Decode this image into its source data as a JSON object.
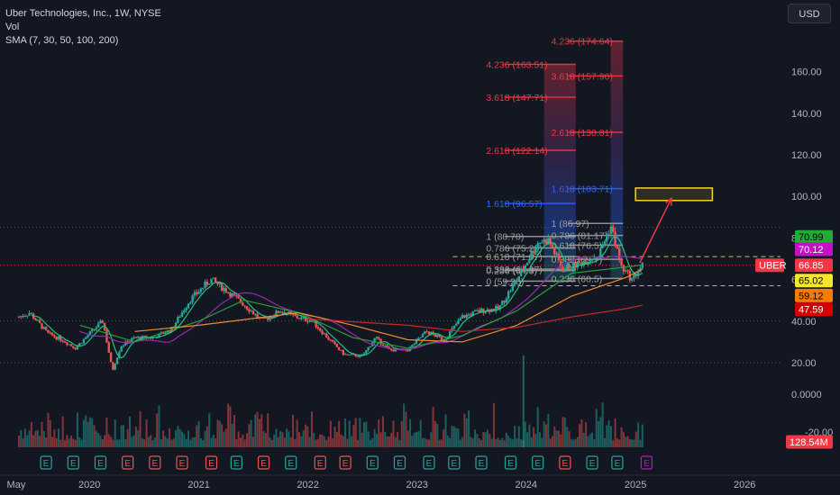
{
  "header": {
    "symbol_line": "Uber Technologies, Inc., 1W, NYSE",
    "volume_label": "Vol",
    "sma_label": "SMA (7, 30, 50, 100, 200)",
    "currency": "USD"
  },
  "colors": {
    "background": "#131722",
    "candle_up": "#26a69a",
    "candle_down": "#ef5350",
    "sma7": "#26c281",
    "sma30": "#9c27b0",
    "sma50": "#2e9d3a",
    "sma100": "#ef8b2c",
    "sma200": "#c62828",
    "fib_red": "#f23645",
    "fib_purple": "#9c27b0",
    "fib_blue": "#2962ff",
    "target_box": "#f5d327",
    "arrow": "#f23645"
  },
  "chart_data": {
    "type": "candlestick",
    "symbol": "UBER",
    "price_axis": {
      "min": 0,
      "max": 180,
      "ticks": [
        "160.00",
        "140.00",
        "120.00",
        "100.00",
        "80.00",
        "60.00",
        "40.00",
        "20.00"
      ]
    },
    "volume_axis_ticks": [
      "0.0000",
      "-20.00"
    ],
    "time_axis": [
      "May",
      "2020",
      "2021",
      "2022",
      "2023",
      "2024",
      "2025",
      "2026"
    ],
    "price_path": [
      [
        "2019-05-10",
        42
      ],
      [
        "2019-06-15",
        44
      ],
      [
        "2019-08-15",
        34
      ],
      [
        "2019-10-01",
        31
      ],
      [
        "2019-11-15",
        27
      ],
      [
        "2020-01-15",
        36
      ],
      [
        "2020-02-15",
        40
      ],
      [
        "2020-03-18",
        16
      ],
      [
        "2020-04-15",
        28
      ],
      [
        "2020-06-01",
        32
      ],
      [
        "2020-08-01",
        32
      ],
      [
        "2020-10-01",
        36
      ],
      [
        "2020-12-01",
        50
      ],
      [
        "2021-02-10",
        60
      ],
      [
        "2021-04-01",
        55
      ],
      [
        "2021-06-01",
        48
      ],
      [
        "2021-08-01",
        40
      ],
      [
        "2021-10-01",
        45
      ],
      [
        "2021-11-20",
        42
      ],
      [
        "2022-01-15",
        40
      ],
      [
        "2022-03-01",
        33
      ],
      [
        "2022-05-01",
        24
      ],
      [
        "2022-07-01",
        23
      ],
      [
        "2022-08-15",
        32
      ],
      [
        "2022-10-01",
        26
      ],
      [
        "2022-12-01",
        26
      ],
      [
        "2023-02-01",
        35
      ],
      [
        "2023-04-01",
        31
      ],
      [
        "2023-06-01",
        42
      ],
      [
        "2023-08-01",
        45
      ],
      [
        "2023-10-01",
        46
      ],
      [
        "2023-12-01",
        60
      ],
      [
        "2024-02-10",
        78
      ],
      [
        "2024-03-15",
        79
      ],
      [
        "2024-05-01",
        65
      ],
      [
        "2024-07-01",
        68
      ],
      [
        "2024-09-01",
        72
      ],
      [
        "2024-10-10",
        86
      ],
      [
        "2024-11-15",
        66
      ],
      [
        "2024-12-20",
        60
      ],
      [
        "2025-01-24",
        66.85
      ]
    ],
    "sma_lines": [
      {
        "name": "SMA 50",
        "points": [
          [
            "2019-12-01",
            38
          ],
          [
            "2020-06-01",
            30
          ],
          [
            "2021-01-01",
            40
          ],
          [
            "2021-06-01",
            50
          ],
          [
            "2021-12-01",
            44
          ],
          [
            "2022-06-01",
            32
          ],
          [
            "2022-12-01",
            27
          ],
          [
            "2023-06-01",
            33
          ],
          [
            "2023-12-01",
            45
          ],
          [
            "2024-06-01",
            63
          ],
          [
            "2024-12-01",
            66
          ],
          [
            "2025-01-24",
            67
          ]
        ]
      },
      {
        "name": "SMA 100",
        "points": [
          [
            "2020-06-01",
            35
          ],
          [
            "2021-01-01",
            38
          ],
          [
            "2021-12-01",
            44
          ],
          [
            "2022-06-01",
            38
          ],
          [
            "2022-12-01",
            31
          ],
          [
            "2023-06-01",
            30
          ],
          [
            "2023-12-01",
            38
          ],
          [
            "2024-06-01",
            52
          ],
          [
            "2024-12-01",
            61
          ],
          [
            "2025-01-24",
            65
          ]
        ]
      },
      {
        "name": "SMA 200",
        "points": [
          [
            "2022-01-01",
            41
          ],
          [
            "2022-12-01",
            38
          ],
          [
            "2023-06-01",
            35
          ],
          [
            "2023-12-01",
            37
          ],
          [
            "2024-06-01",
            42
          ],
          [
            "2024-12-01",
            46
          ],
          [
            "2025-01-24",
            47.59
          ]
        ]
      }
    ],
    "horizontal_lines": [
      {
        "value": 85,
        "style": "dotted",
        "color": "#50535e"
      },
      {
        "value": 40,
        "style": "dotted",
        "color": "#50535e"
      },
      {
        "value": 20,
        "style": "dotted",
        "color": "#50535e"
      },
      {
        "value": 66.85,
        "style": "dotted",
        "color": "#f23645"
      },
      {
        "value": 71,
        "style": "dashed",
        "color": "#c0ca33",
        "from": "2023-05-01"
      },
      {
        "value": 57,
        "style": "dashed",
        "color": "#c0ca33",
        "from": "2023-05-01"
      }
    ],
    "fib_left": {
      "x_start": "2023-10-20",
      "x_split": "2024-03-01",
      "x_end": "2024-06-15",
      "label_x": "2023-08-20",
      "levels": [
        {
          "ratio": "0",
          "value": 59.2,
          "label": "0 (59.20)"
        },
        {
          "ratio": "0.236",
          "value": 64.3,
          "label": "0.236 (64.3)"
        },
        {
          "ratio": "0.382",
          "value": 64.97,
          "label": "0.382 (64.97)"
        },
        {
          "ratio": "0.618",
          "value": 71.07,
          "label": "0.618 (71.07)"
        },
        {
          "ratio": "0.786",
          "value": 75.2,
          "label": "0.786 (75.20)"
        },
        {
          "ratio": "1",
          "value": 80.7,
          "label": "1 (80.70)"
        },
        {
          "ratio": "1.618",
          "value": 96.57,
          "label": "1.618 (96.57)"
        },
        {
          "ratio": "2.618",
          "value": 122.14,
          "label": "2.618 (122.14)"
        },
        {
          "ratio": "3.618",
          "value": 147.71,
          "label": "3.618 (147.71)"
        },
        {
          "ratio": "4.236",
          "value": 163.51,
          "label": "4.236 (163.51)"
        }
      ]
    },
    "fib_right": {
      "x_start": "2024-05-20",
      "x_split": "2024-10-10",
      "x_end": "2024-11-20",
      "label_x": "2024-03-25",
      "levels": [
        {
          "ratio": "0.236",
          "value": 60.5,
          "label": "0.236 (60.5)"
        },
        {
          "ratio": "0.382",
          "value": 69.7,
          "label": "0.382 (69.7)"
        },
        {
          "ratio": "0.618",
          "value": 76.5,
          "label": "0.618 (76.5)"
        },
        {
          "ratio": "0.786",
          "value": 81.17,
          "label": "0.786 (81.17)"
        },
        {
          "ratio": "1",
          "value": 86.97,
          "label": "1 (86.97)"
        },
        {
          "ratio": "1.618",
          "value": 103.71,
          "label": "1.618 (103.71)"
        },
        {
          "ratio": "2.618",
          "value": 130.81,
          "label": "2.618 (130.81)"
        },
        {
          "ratio": "3.618",
          "value": 157.9,
          "label": "3.618 (157.90)"
        },
        {
          "ratio": "4.236",
          "value": 174.64,
          "label": "4.236 (174.64)"
        }
      ]
    },
    "target_zone": {
      "x_start": "2025-01-01",
      "x_end": "2025-09-15",
      "low": 98,
      "high": 104
    },
    "arrow": {
      "from": [
        "2025-01-15",
        68
      ],
      "to": [
        "2025-05-01",
        99
      ]
    },
    "price_labels": [
      {
        "value": "70.99",
        "price": 80.5,
        "bg": "#22ab35",
        "fg": "#000000"
      },
      {
        "value": "70.12",
        "price": 74.5,
        "bg": "#c511c5",
        "fg": "#ffffff"
      },
      {
        "value": "66.85",
        "price": 66.85,
        "bg": "#f23645",
        "fg": "#ffffff"
      },
      {
        "value": "65.02",
        "price": 59.5,
        "bg": "#f5e627",
        "fg": "#000000"
      },
      {
        "value": "59.12",
        "price": 52.3,
        "bg": "#f57c00",
        "fg": "#000000"
      },
      {
        "value": "47.59",
        "price": 45.7,
        "bg": "#d50000",
        "fg": "#ffffff"
      },
      {
        "value": "128.54M",
        "price": -31.5,
        "bg": "#f23645",
        "fg": "#ffffff"
      }
    ],
    "symbol_tag": "UBER",
    "earnings_marker": "E",
    "earnings_dates": [
      "2019-08-09",
      "2019-11-08",
      "2020-02-07",
      "2020-05-08",
      "2020-08-07",
      "2020-11-06",
      "2021-02-12",
      "2021-05-07",
      "2021-08-06",
      "2021-11-05",
      "2022-02-11",
      "2022-05-06",
      "2022-08-05",
      "2022-11-04",
      "2023-02-10",
      "2023-05-05",
      "2023-08-04",
      "2023-11-10",
      "2024-02-09",
      "2024-05-10",
      "2024-08-09",
      "2024-11-01",
      "2025-02-07"
    ],
    "earnings_colors": [
      "g",
      "g",
      "g",
      "r",
      "r",
      "r",
      "r",
      "g",
      "r",
      "g",
      "r",
      "r",
      "g",
      "g",
      "g",
      "g",
      "g",
      "g",
      "g",
      "r",
      "g",
      "g",
      "p"
    ]
  }
}
